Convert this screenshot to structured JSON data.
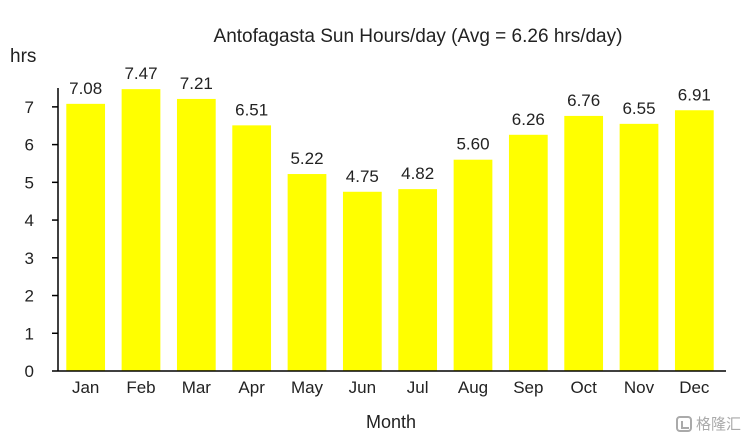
{
  "chart_data": {
    "type": "bar",
    "title": "Antofagasta Sun Hours/day (Avg = 6.26 hrs/day)",
    "xlabel": "Month",
    "ylabel": "hrs",
    "categories": [
      "Jan",
      "Feb",
      "Mar",
      "Apr",
      "May",
      "Jun",
      "Jul",
      "Aug",
      "Sep",
      "Oct",
      "Nov",
      "Dec"
    ],
    "values": [
      7.08,
      7.47,
      7.21,
      6.51,
      5.22,
      4.75,
      4.82,
      5.6,
      6.26,
      6.76,
      6.55,
      6.91
    ],
    "value_labels": [
      "7.08",
      "7.47",
      "7.21",
      "6.51",
      "5.22",
      "4.75",
      "4.82",
      "5.60",
      "6.26",
      "6.76",
      "6.55",
      "6.91"
    ],
    "ylim": [
      0,
      7.5
    ],
    "yticks": [
      0,
      1,
      2,
      3,
      4,
      5,
      6,
      7
    ],
    "bar_color": "#ffff00",
    "grid": false,
    "legend": "none"
  },
  "watermark": {
    "text": "格隆汇"
  }
}
